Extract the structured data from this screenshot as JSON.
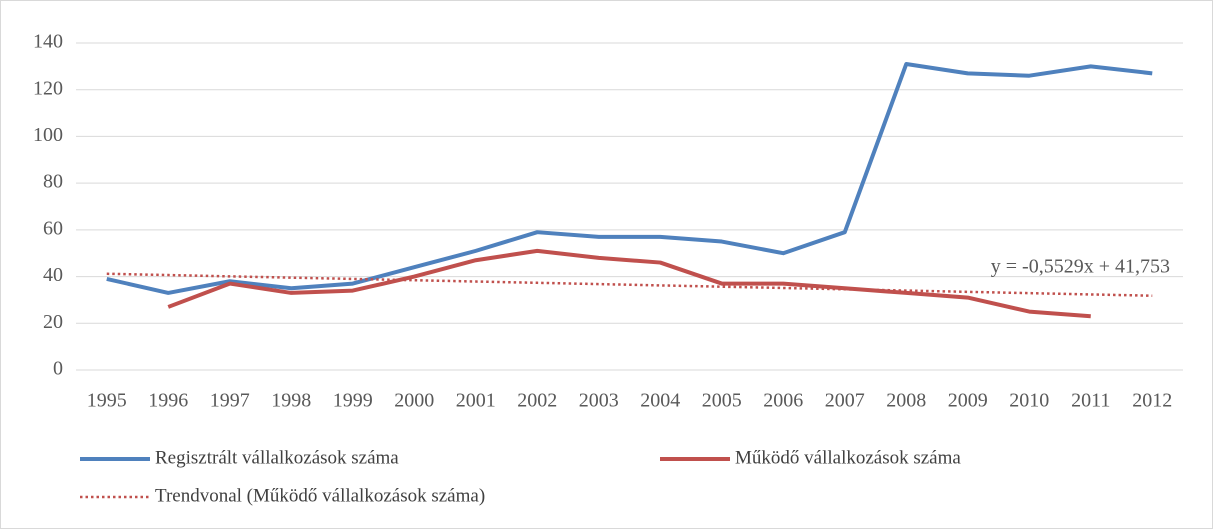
{
  "chart_data": {
    "type": "line",
    "categories": [
      "1995",
      "1996",
      "1997",
      "1998",
      "1999",
      "2000",
      "2001",
      "2002",
      "2003",
      "2004",
      "2005",
      "2006",
      "2007",
      "2008",
      "2009",
      "2010",
      "2011",
      "2012"
    ],
    "series": [
      {
        "name": "Regisztrált vállalkozások száma",
        "color": "#4f81bd",
        "style": "solid",
        "values": [
          39,
          33,
          38,
          35,
          37,
          44,
          51,
          59,
          57,
          57,
          55,
          50,
          59,
          131,
          127,
          126,
          130,
          127
        ]
      },
      {
        "name": "Működő vállalkozások száma",
        "color": "#c0504d",
        "style": "solid",
        "values": [
          null,
          27,
          37,
          33,
          34,
          40,
          47,
          51,
          48,
          46,
          37,
          37,
          35,
          33,
          31,
          25,
          23,
          null
        ]
      },
      {
        "name": "Trendvonal (Működő vállalkozások száma)",
        "color": "#c0504d",
        "style": "dotted",
        "values": [
          41.2,
          40.65,
          40.09,
          39.54,
          38.99,
          38.43,
          37.88,
          37.33,
          36.78,
          36.22,
          35.67,
          35.12,
          34.56,
          34.01,
          33.46,
          32.91,
          32.35,
          31.8
        ]
      }
    ],
    "annotation": "y = -0,5529x + 41,753",
    "ylim": [
      0,
      140
    ],
    "yticks": [
      0,
      20,
      40,
      60,
      80,
      100,
      120,
      140
    ],
    "grid": true
  }
}
